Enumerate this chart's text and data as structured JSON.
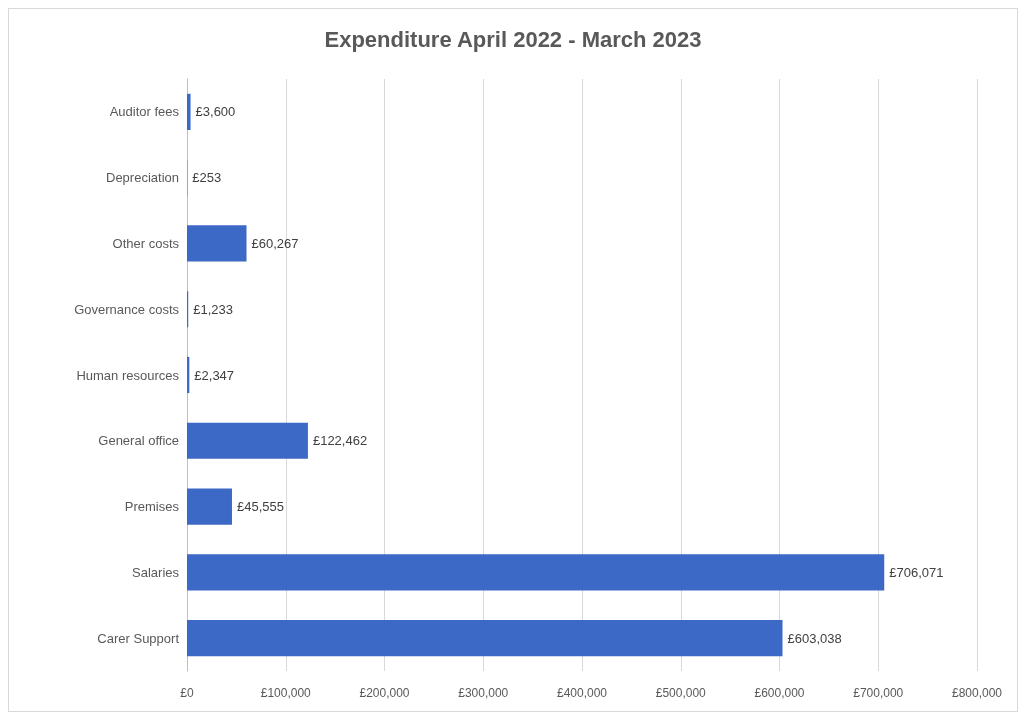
{
  "chart_data": {
    "type": "bar",
    "orientation": "horizontal",
    "title": "Expenditure April 2022 - March 2023",
    "categories": [
      "Auditor fees",
      "Depreciation",
      "Other costs",
      "Governance costs",
      "Human resources",
      "General office",
      "Premises",
      "Salaries",
      "Carer Support"
    ],
    "values": [
      3600,
      253,
      60267,
      1233,
      2347,
      122462,
      45555,
      706071,
      603038
    ],
    "value_labels": [
      "£3,600",
      "£253",
      "£60,267",
      "£1,233",
      "£2,347",
      "£122,462",
      "£45,555",
      "£706,071",
      "£603,038"
    ],
    "color": "#3d69c6",
    "xlim": [
      0,
      800000
    ],
    "xticks": [
      {
        "value": 0,
        "label": "£0"
      },
      {
        "value": 100000,
        "label": "£100,000"
      },
      {
        "value": 200000,
        "label": "£200,000"
      },
      {
        "value": 300000,
        "label": "£300,000"
      },
      {
        "value": 400000,
        "label": "£400,000"
      },
      {
        "value": 500000,
        "label": "£500,000"
      },
      {
        "value": 600000,
        "label": "£600,000"
      },
      {
        "value": 700000,
        "label": "£700,000"
      },
      {
        "value": 800000,
        "label": "£800,000"
      }
    ],
    "grid": "x"
  }
}
